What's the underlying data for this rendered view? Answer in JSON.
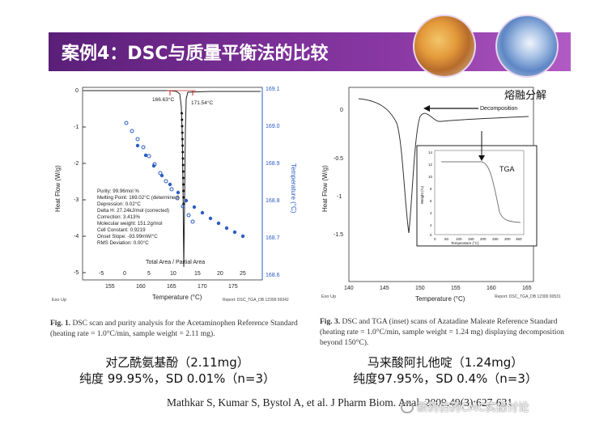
{
  "banner": {
    "title": "案例4：DSC与质量平衡法的比较"
  },
  "left_figure": {
    "title_y_left": "Heat Flow (W/g)",
    "title_y_right": "Temperature (°C)",
    "xlabel": "Temperature (°C)",
    "x2label": "Total Area / Partial Area",
    "peak_labels": [
      "166.63°C",
      "171.54°C"
    ],
    "ticks_y_left": [
      "0",
      "-1",
      "-2",
      "-3",
      "-4",
      "-5"
    ],
    "ticks_y_right": [
      "169.1",
      "169.0",
      "168.9",
      "168.8",
      "168.7",
      "168.6"
    ],
    "ticks_x_bottom": [
      "155",
      "160",
      "165",
      "170",
      "175"
    ],
    "ticks_x_top": [
      "-5",
      "0",
      "5",
      "10",
      "15",
      "20",
      "25"
    ],
    "purity_box": [
      "Purity: 99.96mol %",
      "Melting Point: 169.02°C (determined)",
      "Depression: 0.02°C",
      "Delta H: 27.24kJ/mol (corrected)",
      "Correction: 3.413%",
      "Molecular weight: 151.2g/mol",
      "Cell Constant: 0.9219",
      "Onset Slope: -93.99mW/°C",
      "RMS Deviation: 0.00°C"
    ],
    "footer_left": "Exo Up",
    "footer_right": "Report: DSC_TGA_DB 12399 99342",
    "caption_bold": "Fig. 1.",
    "caption_text": "DSC scan and purity analysis for the Acetaminophen Reference Standard (heating rate = 1.0°C/min, sample weight = 2.11 mg)."
  },
  "right_figure": {
    "annotation_cn": "熔融分解",
    "annotation_en": "Decomposition",
    "ylabel": "Heat Flow (W/g)",
    "xlabel": "Temperature (°C)",
    "ticks_y": [
      "0",
      "-0.5",
      "-1",
      "-1.5"
    ],
    "ticks_x": [
      "140",
      "145",
      "150",
      "155",
      "160",
      "165"
    ],
    "inset": {
      "label": "TGA",
      "ylabel": "Weight (%)",
      "xlabel": "Temperature (°C)",
      "ticks_y": [
        "14",
        "12",
        "10",
        "8",
        "6",
        "4",
        "2",
        "0"
      ],
      "ticks_x": [
        "0",
        "50",
        "100",
        "150",
        "200",
        "250",
        "300",
        "350"
      ]
    },
    "footer_left": "Exo Up",
    "footer_right": "Report: DSC_TGA_DB 12300 90531",
    "caption_bold": "Fig. 3.",
    "caption_text": "DSC and TGA (inset) scans of Azatadine Maleate Reference Standard (heating rate = 1.0°C/min, sample weight = 1.24 mg) displaying decomposition beyond 150°C)."
  },
  "compounds": {
    "left_name": "对乙酰氨基酚（2.11mg）",
    "left_result": "纯度 99.95%，SD 0.01%（n=3）",
    "right_name": "马来酸阿扎他啶（1.24mg）",
    "right_result": "纯度97.95%，SD 0.4%（n=3）"
  },
  "reference": "Mathkar S, Kumar S, Bystol A, et al. J Pharm Biom. Anal. 2009,49(3):627-631",
  "watermark": "新药仿药CMC实操讨论",
  "colors": {
    "banner": "#6b2a8a",
    "curve": "#333333",
    "points": "#2a5cc4",
    "peak_marker": "#cc2222"
  }
}
